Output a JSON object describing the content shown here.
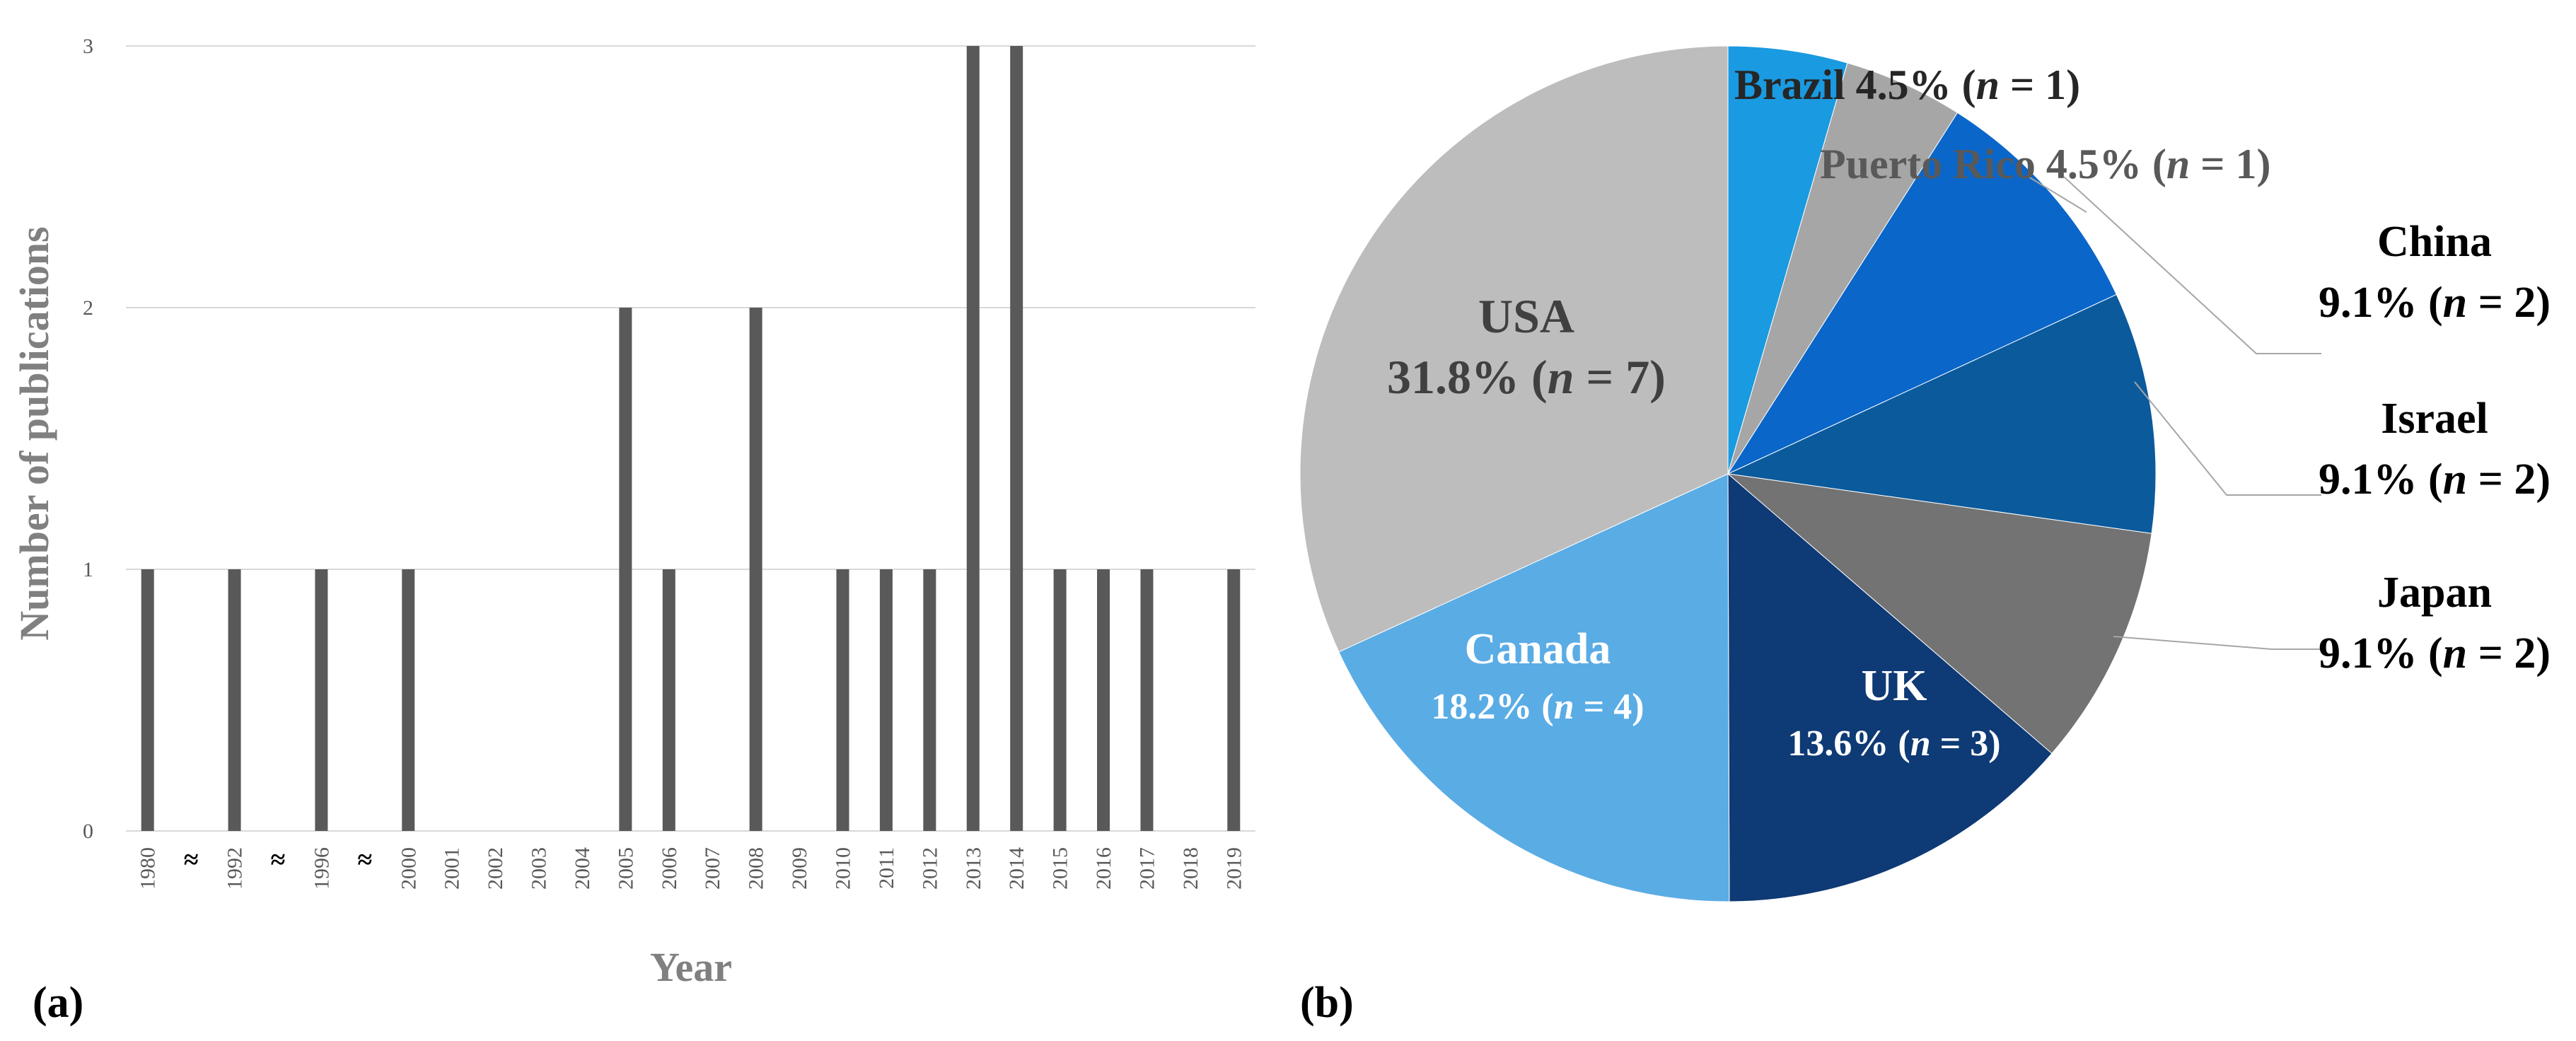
{
  "chart_data": [
    {
      "type": "bar",
      "panel_label": "(a)",
      "xlabel": "Year",
      "ylabel": "Number of publications",
      "ylim": [
        0,
        3
      ],
      "yticks": [
        "0",
        "1",
        "2",
        "3"
      ],
      "grid": true,
      "categories": [
        "1980",
        "≈",
        "1992",
        "≈",
        "1996",
        "≈",
        "2000",
        "2001",
        "2002",
        "2003",
        "2004",
        "2005",
        "2006",
        "2007",
        "2008",
        "2009",
        "2010",
        "2011",
        "2012",
        "2013",
        "2014",
        "2015",
        "2016",
        "2017",
        "2018",
        "2019"
      ],
      "values": [
        1,
        null,
        1,
        null,
        1,
        null,
        1,
        0,
        0,
        0,
        0,
        2,
        1,
        0,
        2,
        0,
        1,
        1,
        1,
        3,
        3,
        1,
        1,
        1,
        0,
        1
      ],
      "colors": {
        "bar": "#595959",
        "grid": "#d9d9d9"
      }
    },
    {
      "type": "pie",
      "panel_label": "(b)",
      "slices": [
        {
          "name": "Brazil",
          "pct": 4.5,
          "n": 1,
          "color": "#1a9ae0",
          "label_color": "#262626",
          "text": [
            "Brazil 4.5% (",
            "n",
            " = 1)"
          ]
        },
        {
          "name": "Puerto Rico",
          "pct": 4.5,
          "n": 1,
          "color": "#a6a6a6",
          "label_color": "#595959",
          "text": [
            "Puerto Rico 4.5% (",
            "n",
            " = 1)"
          ]
        },
        {
          "name": "China",
          "pct": 9.1,
          "n": 2,
          "color": "#0a66c9",
          "label_color": "#000000",
          "name_line": "China",
          "text": [
            "9.1% (",
            "n",
            " = 2)"
          ]
        },
        {
          "name": "Israel",
          "pct": 9.1,
          "n": 2,
          "color": "#0b5a9c",
          "label_color": "#000000",
          "name_line": "Israel",
          "text": [
            "9.1% (",
            "n",
            " = 2)"
          ]
        },
        {
          "name": "Japan",
          "pct": 9.1,
          "n": 2,
          "color": "#737373",
          "label_color": "#000000",
          "name_line": "Japan",
          "text": [
            "9.1% (",
            "n",
            " = 2)"
          ]
        },
        {
          "name": "UK",
          "pct": 13.6,
          "n": 3,
          "color": "#0e3a75",
          "label_color": "#ffffff",
          "name_line": "UK",
          "text": [
            "13.6% (",
            "n",
            " = 3)"
          ]
        },
        {
          "name": "Canada",
          "pct": 18.2,
          "n": 4,
          "color": "#5aace5",
          "label_color": "#ffffff",
          "name_line": "Canada",
          "text": [
            "18.2% (",
            "n",
            " = 4)"
          ]
        },
        {
          "name": "USA",
          "pct": 31.8,
          "n": 7,
          "color": "#bdbdbd",
          "label_color": "#404040",
          "name_line": "USA",
          "text": [
            "31.8% (",
            "n",
            " = 7)"
          ]
        }
      ]
    }
  ]
}
